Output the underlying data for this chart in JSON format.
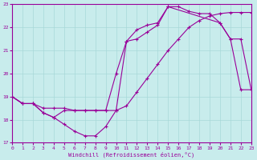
{
  "xlabel": "Windchill (Refroidissement éolien,°C)",
  "xlim": [
    0,
    23
  ],
  "ylim": [
    17,
    23
  ],
  "yticks": [
    17,
    18,
    19,
    20,
    21,
    22,
    23
  ],
  "xticks": [
    0,
    1,
    2,
    3,
    4,
    5,
    6,
    7,
    8,
    9,
    10,
    11,
    12,
    13,
    14,
    15,
    16,
    17,
    18,
    19,
    20,
    21,
    22,
    23
  ],
  "line_color": "#990099",
  "bg_color": "#c8ecec",
  "grid_color": "#a8d8d8",
  "line1_x": [
    0,
    1,
    2,
    3,
    4,
    5,
    6,
    7,
    8,
    9,
    10,
    11,
    12,
    13,
    14,
    15,
    16,
    17,
    18,
    19,
    20,
    21,
    22,
    23
  ],
  "line1_y": [
    19.0,
    18.7,
    18.7,
    18.3,
    18.1,
    17.8,
    17.5,
    17.3,
    17.3,
    17.7,
    18.4,
    21.4,
    21.5,
    21.8,
    22.1,
    22.9,
    22.9,
    22.7,
    22.6,
    22.6,
    22.2,
    21.5,
    19.3,
    19.3
  ],
  "line2_x": [
    0,
    1,
    2,
    3,
    4,
    5,
    6,
    7,
    8,
    9,
    10,
    11,
    12,
    13,
    14,
    15,
    16,
    17,
    18,
    19,
    20,
    21,
    22,
    23
  ],
  "line2_y": [
    19.0,
    18.7,
    18.7,
    18.5,
    18.5,
    18.5,
    18.4,
    18.4,
    18.4,
    18.4,
    18.4,
    18.6,
    19.2,
    19.8,
    20.4,
    21.0,
    21.5,
    22.0,
    22.3,
    22.5,
    22.6,
    22.65,
    22.65,
    22.65
  ],
  "line3_x": [
    0,
    1,
    2,
    3,
    4,
    5,
    6,
    7,
    8,
    9,
    10,
    11,
    12,
    13,
    14,
    15,
    20,
    21,
    22,
    23
  ],
  "line3_y": [
    19.0,
    18.7,
    18.7,
    18.3,
    18.1,
    18.4,
    18.4,
    18.4,
    18.4,
    18.4,
    20.0,
    21.4,
    21.9,
    22.1,
    22.2,
    22.9,
    22.2,
    21.5,
    21.5,
    19.3
  ]
}
